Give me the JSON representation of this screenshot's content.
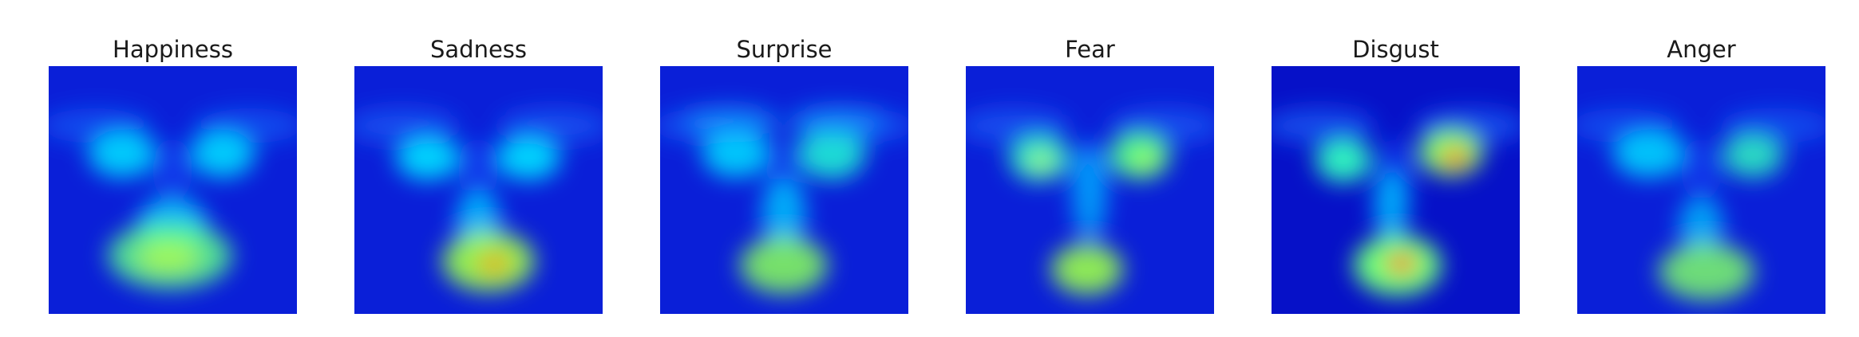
{
  "figure": {
    "panels": [
      {
        "title": "Happiness",
        "profile": "happiness",
        "intensity": 0.82
      },
      {
        "title": "Sadness",
        "profile": "sadness",
        "intensity": 0.86
      },
      {
        "title": "Surprise",
        "profile": "surprise",
        "intensity": 0.8
      },
      {
        "title": "Fear",
        "profile": "fear",
        "intensity": 0.84
      },
      {
        "title": "Disgust",
        "profile": "disgust",
        "intensity": 0.95
      },
      {
        "title": "Anger",
        "profile": "anger",
        "intensity": 0.78
      }
    ]
  }
}
